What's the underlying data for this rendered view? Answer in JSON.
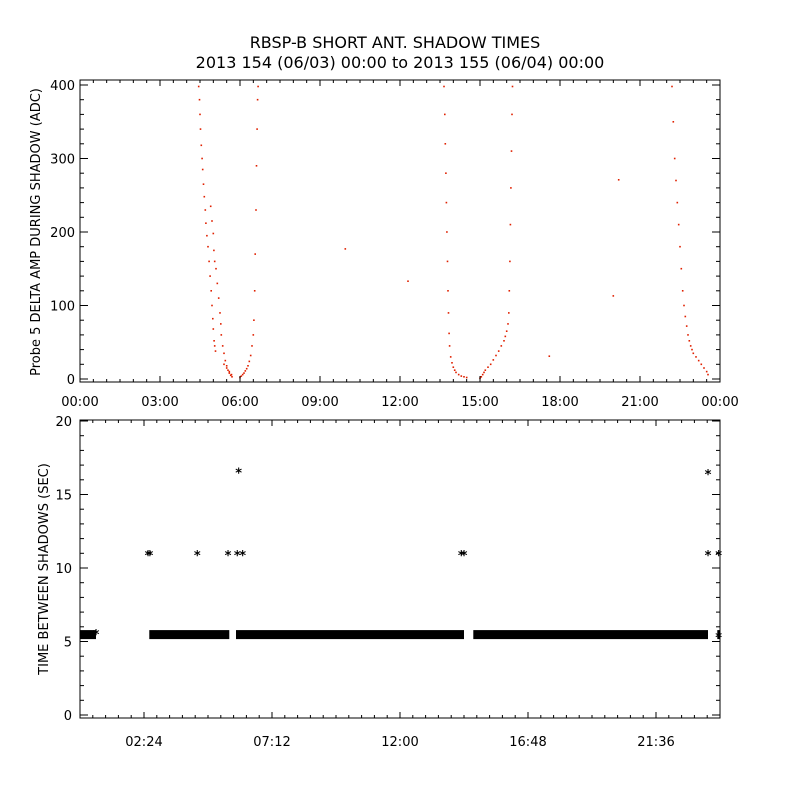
{
  "title": {
    "line1": "RBSP-B SHORT ANT. SHADOW TIMES",
    "line2": "2013 154 (06/03) 00:00 to 2013 155 (06/04) 00:00"
  },
  "colors": {
    "shadow_amp_points": "#e02000",
    "gap_points": "#000000"
  },
  "chart_data": [
    {
      "type": "scatter",
      "xlabel": "",
      "ylabel": "Probe 5 DELTA AMP DURING SHADOW (ADC)",
      "xlim": [
        "00:00",
        "24:00"
      ],
      "ylim": [
        0,
        400
      ],
      "xticks": [
        "00:00",
        "03:00",
        "06:00",
        "09:00",
        "12:00",
        "15:00",
        "18:00",
        "21:00",
        "00:00"
      ],
      "yticks": [
        0,
        100,
        200,
        300,
        400
      ],
      "grid": false,
      "series": [
        {
          "color": "#e02000",
          "points_hours_adc": [
            [
              4.45,
              398
            ],
            [
              4.48,
              380
            ],
            [
              4.5,
              360
            ],
            [
              4.52,
              340
            ],
            [
              4.55,
              318
            ],
            [
              4.58,
              300
            ],
            [
              4.6,
              285
            ],
            [
              4.63,
              265
            ],
            [
              4.66,
              248
            ],
            [
              4.7,
              230
            ],
            [
              4.72,
              212
            ],
            [
              4.76,
              195
            ],
            [
              4.8,
              180
            ],
            [
              4.84,
              160
            ],
            [
              4.88,
              140
            ],
            [
              4.92,
              120
            ],
            [
              4.95,
              100
            ],
            [
              4.98,
              82
            ],
            [
              5.0,
              68
            ],
            [
              5.03,
              52
            ],
            [
              5.05,
              45
            ],
            [
              5.08,
              38
            ],
            [
              4.9,
              235
            ],
            [
              4.95,
              215
            ],
            [
              5.0,
              198
            ],
            [
              5.02,
              175
            ],
            [
              5.05,
              160
            ],
            [
              5.1,
              150
            ],
            [
              5.15,
              130
            ],
            [
              5.2,
              110
            ],
            [
              5.25,
              90
            ],
            [
              5.28,
              75
            ],
            [
              5.3,
              60
            ],
            [
              5.35,
              45
            ],
            [
              5.4,
              35
            ],
            [
              5.45,
              25
            ],
            [
              5.5,
              18
            ],
            [
              5.55,
              12
            ],
            [
              5.6,
              8
            ],
            [
              5.65,
              5
            ],
            [
              5.7,
              3
            ],
            [
              5.4,
              20
            ],
            [
              5.5,
              15
            ],
            [
              5.6,
              10
            ],
            [
              5.68,
              6
            ],
            [
              6.0,
              2
            ],
            [
              6.05,
              4
            ],
            [
              6.1,
              6
            ],
            [
              6.15,
              8
            ],
            [
              6.2,
              11
            ],
            [
              6.25,
              14
            ],
            [
              6.3,
              18
            ],
            [
              6.35,
              24
            ],
            [
              6.4,
              32
            ],
            [
              6.45,
              45
            ],
            [
              6.5,
              60
            ],
            [
              6.52,
              80
            ],
            [
              6.55,
              120
            ],
            [
              6.57,
              170
            ],
            [
              6.6,
              230
            ],
            [
              6.62,
              290
            ],
            [
              6.64,
              340
            ],
            [
              6.66,
              380
            ],
            [
              6.68,
              398
            ],
            [
              9.95,
              177
            ],
            [
              12.3,
              133
            ],
            [
              17.6,
              31
            ],
            [
              20.0,
              113
            ],
            [
              20.2,
              271
            ],
            [
              13.65,
              398
            ],
            [
              13.68,
              360
            ],
            [
              13.7,
              320
            ],
            [
              13.72,
              280
            ],
            [
              13.74,
              240
            ],
            [
              13.76,
              200
            ],
            [
              13.78,
              160
            ],
            [
              13.8,
              120
            ],
            [
              13.82,
              90
            ],
            [
              13.84,
              62
            ],
            [
              13.86,
              45
            ],
            [
              13.9,
              30
            ],
            [
              13.95,
              22
            ],
            [
              14.0,
              16
            ],
            [
              14.05,
              12
            ],
            [
              14.1,
              9
            ],
            [
              14.2,
              6
            ],
            [
              14.3,
              4
            ],
            [
              14.4,
              3
            ],
            [
              14.5,
              2
            ],
            [
              15.0,
              1
            ],
            [
              15.05,
              3
            ],
            [
              15.1,
              6
            ],
            [
              15.15,
              9
            ],
            [
              15.2,
              12
            ],
            [
              15.3,
              16
            ],
            [
              15.4,
              20
            ],
            [
              15.5,
              26
            ],
            [
              15.6,
              32
            ],
            [
              15.7,
              38
            ],
            [
              15.8,
              45
            ],
            [
              15.9,
              52
            ],
            [
              15.95,
              58
            ],
            [
              16.0,
              65
            ],
            [
              16.05,
              75
            ],
            [
              16.08,
              90
            ],
            [
              16.1,
              120
            ],
            [
              16.12,
              160
            ],
            [
              16.14,
              210
            ],
            [
              16.16,
              260
            ],
            [
              16.18,
              310
            ],
            [
              16.2,
              360
            ],
            [
              16.22,
              398
            ],
            [
              22.2,
              398
            ],
            [
              22.25,
              350
            ],
            [
              22.3,
              300
            ],
            [
              22.35,
              270
            ],
            [
              22.4,
              240
            ],
            [
              22.45,
              210
            ],
            [
              22.5,
              180
            ],
            [
              22.55,
              150
            ],
            [
              22.6,
              120
            ],
            [
              22.65,
              100
            ],
            [
              22.7,
              85
            ],
            [
              22.75,
              72
            ],
            [
              22.8,
              60
            ],
            [
              22.85,
              52
            ],
            [
              22.9,
              45
            ],
            [
              22.95,
              40
            ],
            [
              23.0,
              35
            ],
            [
              23.1,
              30
            ],
            [
              23.2,
              25
            ],
            [
              23.3,
              20
            ],
            [
              23.4,
              15
            ],
            [
              23.5,
              10
            ],
            [
              23.55,
              6
            ]
          ]
        }
      ]
    },
    {
      "type": "scatter",
      "xlabel": "",
      "ylabel": "TIME BETWEEN SHADOWS (SEC)",
      "xlim": [
        "00:00",
        "24:00"
      ],
      "ylim": [
        0,
        20
      ],
      "xticks": [
        "02:24",
        "07:12",
        "12:00",
        "16:48",
        "21:36"
      ],
      "yticks": [
        0,
        5,
        10,
        15,
        20
      ],
      "grid": false,
      "series": [
        {
          "color": "#000000",
          "marker": "*",
          "baseline_value": 5.5,
          "baseline_ranges_hours": [
            [
              0.0,
              0.6
            ],
            [
              2.6,
              5.6
            ],
            [
              5.85,
              14.4
            ],
            [
              14.75,
              23.55
            ],
            [
              23.9,
              24.0
            ]
          ],
          "points_hours_sec": [
            [
              0.6,
              5.5
            ],
            [
              2.55,
              10.9
            ],
            [
              2.62,
              10.9
            ],
            [
              4.4,
              10.9
            ],
            [
              5.55,
              10.9
            ],
            [
              5.95,
              16.5
            ],
            [
              5.9,
              10.9
            ],
            [
              6.1,
              10.9
            ],
            [
              14.3,
              10.9
            ],
            [
              14.4,
              10.9
            ],
            [
              23.55,
              16.4
            ],
            [
              23.55,
              10.9
            ],
            [
              23.95,
              10.9
            ],
            [
              23.95,
              5.3
            ]
          ]
        }
      ]
    }
  ]
}
